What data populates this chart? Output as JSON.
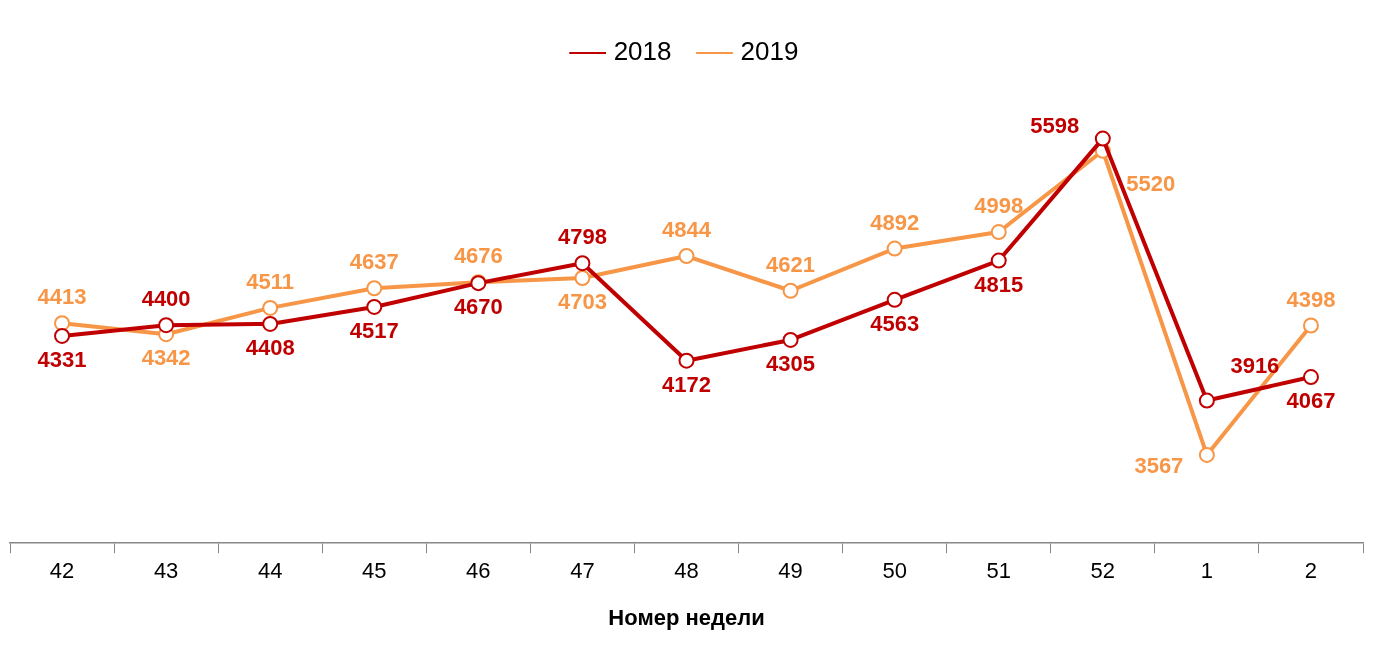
{
  "chart_data": {
    "type": "line",
    "xlabel": "Номер недели",
    "categories": [
      "42",
      "43",
      "44",
      "45",
      "46",
      "47",
      "48",
      "49",
      "50",
      "51",
      "52",
      "1",
      "2"
    ],
    "series": [
      {
        "name": "2018",
        "color": "#c00000",
        "values": [
          4331,
          4400,
          4408,
          4517,
          4670,
          4798,
          4172,
          4305,
          4563,
          4815,
          5598,
          3916,
          4067
        ]
      },
      {
        "name": "2019",
        "color": "#f79646",
        "values": [
          4413,
          4342,
          4511,
          4637,
          4676,
          4703,
          4844,
          4621,
          4892,
          4998,
          5520,
          3567,
          4398
        ]
      }
    ],
    "data_labels": true,
    "legend": "top",
    "marker": "circle",
    "line_style": "solid",
    "grid": false,
    "tick_labels": "x"
  }
}
